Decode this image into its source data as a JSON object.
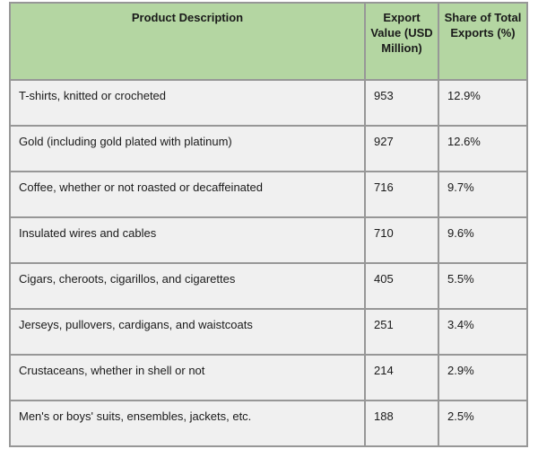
{
  "table": {
    "columns": [
      {
        "key": "product",
        "label": "Product Description"
      },
      {
        "key": "export_value",
        "label": "Export Value (USD Million)"
      },
      {
        "key": "share",
        "label": "Share of Total Exports (%)"
      }
    ],
    "rows": [
      {
        "product": "T-shirts, knitted or crocheted",
        "export_value": "953",
        "share": "12.9%"
      },
      {
        "product": "Gold (including gold plated with platinum)",
        "export_value": "927",
        "share": "12.6%"
      },
      {
        "product": "Coffee, whether or not roasted or decaffeinated",
        "export_value": "716",
        "share": "9.7%"
      },
      {
        "product": "Insulated wires and cables",
        "export_value": "710",
        "share": "9.6%"
      },
      {
        "product": "Cigars, cheroots, cigarillos, and cigarettes",
        "export_value": "405",
        "share": "5.5%"
      },
      {
        "product": "Jerseys, pullovers, cardigans, and waistcoats",
        "export_value": "251",
        "share": "3.4%"
      },
      {
        "product": "Crustaceans, whether in shell or not",
        "export_value": "214",
        "share": "2.9%"
      },
      {
        "product": "Men's or boys' suits, ensembles, jackets, etc.",
        "export_value": "188",
        "share": "2.5%"
      }
    ],
    "colors": {
      "header_bg": "#b4d6a2",
      "row_bg": "#f0f0f0",
      "border": "#979797",
      "text": "#1a1a1a"
    }
  }
}
